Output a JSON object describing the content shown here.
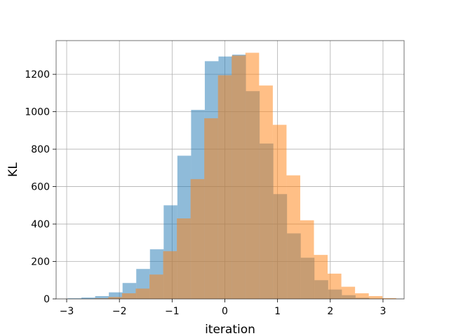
{
  "chart_data": {
    "type": "bar",
    "title": "",
    "xlabel": "iteration",
    "ylabel": "KL",
    "xlim": [
      -3.2,
      3.4
    ],
    "ylim": [
      0,
      1380
    ],
    "grid": true,
    "legend": "none",
    "xticks": [
      -3,
      -2,
      -1,
      0,
      1,
      2,
      3
    ],
    "xtick_labels": [
      "−3",
      "−2",
      "−1",
      "0",
      "1",
      "2",
      "3"
    ],
    "yticks": [
      0,
      200,
      400,
      600,
      800,
      1000,
      1200
    ],
    "ytick_labels": [
      "0",
      "200",
      "400",
      "600",
      "800",
      "1000",
      "1200"
    ],
    "series": [
      {
        "color": "#1f77b4",
        "alpha": 0.5,
        "bin_edges": [
          -2.98,
          -2.72,
          -2.46,
          -2.2,
          -1.94,
          -1.68,
          -1.42,
          -1.16,
          -0.9,
          -0.64,
          -0.38,
          -0.12,
          0.14,
          0.4,
          0.66,
          0.92,
          1.18,
          1.44,
          1.7,
          1.96,
          2.22,
          2.48,
          2.74
        ],
        "values": [
          3,
          7,
          15,
          35,
          85,
          160,
          265,
          500,
          765,
          1010,
          1270,
          1295,
          1305,
          1110,
          830,
          560,
          350,
          220,
          100,
          50,
          20,
          6
        ]
      },
      {
        "color": "#ff7f0e",
        "alpha": 0.5,
        "bin_edges": [
          -2.47,
          -2.21,
          -1.95,
          -1.69,
          -1.43,
          -1.17,
          -0.91,
          -0.65,
          -0.39,
          -0.13,
          0.13,
          0.39,
          0.65,
          0.91,
          1.17,
          1.43,
          1.69,
          1.95,
          2.21,
          2.47,
          2.73,
          2.99,
          3.25
        ],
        "values": [
          3,
          10,
          30,
          55,
          130,
          255,
          430,
          640,
          965,
          1195,
          1300,
          1315,
          1140,
          930,
          660,
          420,
          235,
          135,
          65,
          30,
          15,
          4
        ]
      }
    ]
  }
}
